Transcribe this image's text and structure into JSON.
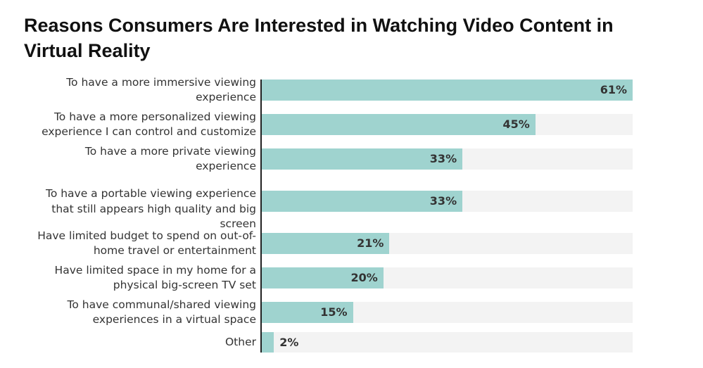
{
  "chart_data": {
    "type": "bar",
    "orientation": "horizontal",
    "title": "Reasons Consumers Are Interested in Watching Video Content in Virtual Reality",
    "xlabel": "",
    "ylabel": "",
    "xlim": [
      0,
      61
    ],
    "categories": [
      [
        "To have a more immersive viewing",
        "experience"
      ],
      [
        "To have a more personalized viewing",
        "experience I can control and customize"
      ],
      [
        "To have a more private viewing",
        "experience"
      ],
      [
        "To have a portable viewing experience",
        "that still appears high quality and big",
        "screen"
      ],
      [
        "Have limited budget to spend on out-of-",
        "home travel or entertainment"
      ],
      [
        "Have limited space in my home for a",
        "physical big-screen TV set"
      ],
      [
        "To have communal/shared viewing",
        "experiences in a virtual space"
      ],
      [
        "Other"
      ]
    ],
    "values": [
      61,
      45,
      33,
      33,
      21,
      20,
      15,
      2
    ],
    "value_labels": [
      "61%",
      "45%",
      "33%",
      "33%",
      "21%",
      "20%",
      "15%",
      "2%"
    ],
    "colors": {
      "bar": "#9fd3cf",
      "track": "#f3f3f3"
    }
  }
}
